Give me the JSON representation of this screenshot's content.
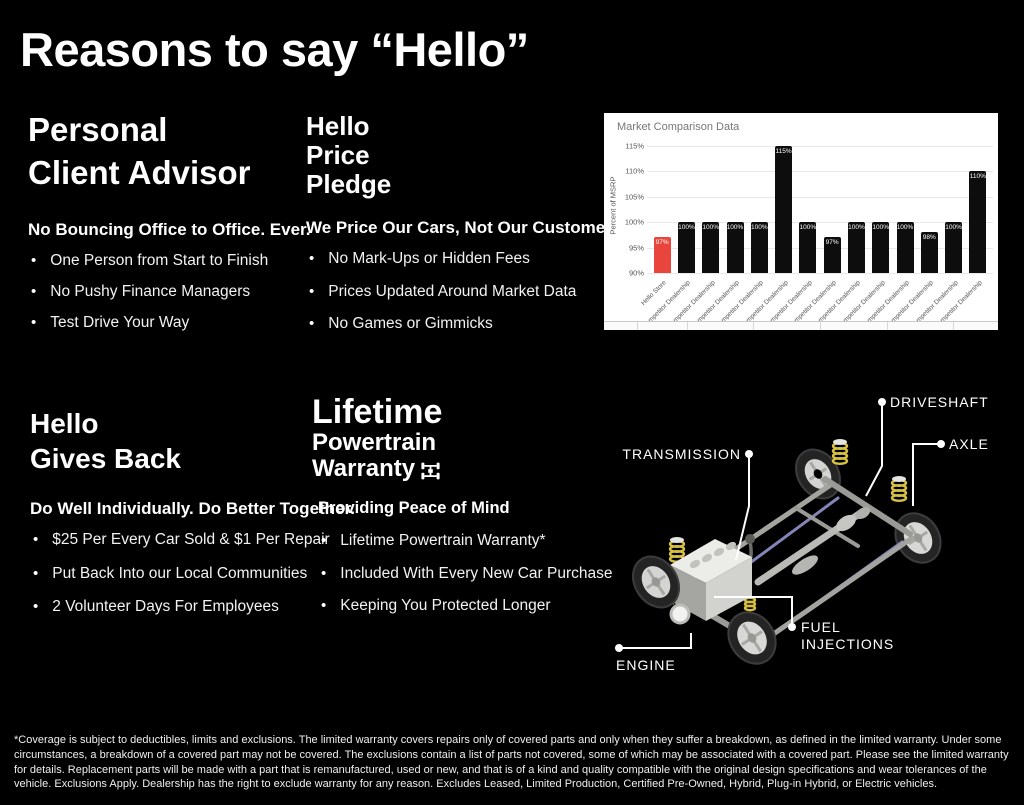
{
  "page": {
    "title": "Reasons to say “Hello”"
  },
  "sections": {
    "personal": {
      "heading_lines": [
        "Personal",
        "Client Advisor"
      ],
      "subheading": "No Bouncing Office to Office. Ever.",
      "bullets": [
        "One Person from Start to Finish",
        "No Pushy Finance Managers",
        "Test Drive Your Way"
      ]
    },
    "price_pledge": {
      "heading_lines": [
        "Hello",
        "Price",
        "Pledge"
      ],
      "subheading": "We Price Our Cars, Not Our Customers.",
      "bullets": [
        "No Mark-Ups or Hidden Fees",
        "Prices Updated Around Market Data",
        "No Games or Gimmicks"
      ]
    },
    "gives_back": {
      "heading_lines": [
        "Hello",
        "Gives Back"
      ],
      "subheading": "Do Well Individually. Do Better Together.",
      "bullets": [
        "$25 Per Every Car Sold & $1 Per Repair",
        "Put Back Into our Local Communities",
        "2 Volunteer Days For Employees"
      ]
    },
    "warranty": {
      "heading_line1": "Lifetime",
      "heading_line2": "Powertrain",
      "heading_line3": "Warranty",
      "subheading": "Providing Peace of Mind",
      "bullets": [
        "Lifetime Powertrain Warranty*",
        "Included With Every New Car Purchase",
        "Keeping You Protected Longer"
      ]
    }
  },
  "chart_data": {
    "type": "bar",
    "title": "Market Comparison Data",
    "ylabel": "Percent of MSRP",
    "xlabel": "",
    "categories": [
      "Hello Store",
      "Competitor Dealership",
      "Competitor Dealership",
      "Competitor Dealership",
      "Competitor Dealership",
      "Competitor Dealership",
      "Competitor Dealership",
      "Competitor Dealership",
      "Competitor Dealership",
      "Competitor Dealership",
      "Competitor Dealership",
      "Competitor Dealership",
      "Competitor Dealership",
      "Competitor Dealership"
    ],
    "values": [
      97,
      100,
      100,
      100,
      100,
      115,
      100,
      97,
      100,
      100,
      100,
      98,
      100,
      110
    ],
    "value_labels": [
      "97%",
      "100%",
      "100%",
      "100%",
      "100%",
      "115%",
      "100%",
      "97%",
      "100%",
      "100%",
      "100%",
      "98%",
      "100%",
      "110%"
    ],
    "yticks": [
      "90%",
      "95%",
      "100%",
      "105%",
      "110%",
      "115%"
    ],
    "ylim": [
      90,
      116
    ],
    "grid": true,
    "legend_position": "none",
    "highlight_color": "#e8463c",
    "bar_color": "#0d0d0d"
  },
  "diagram": {
    "callouts": {
      "driveshaft": "DRIVESHAFT",
      "axle": "AXLE",
      "transmission": "TRANSMISSION",
      "fuel_line1": "FUEL",
      "fuel_line2": "INJECTIONS",
      "engine": "ENGINE"
    }
  },
  "footer": {
    "disclaimer": "*Coverage is subject to deductibles, limits and exclusions. The limited warranty covers repairs only of covered parts and only when they suffer a breakdown, as defined in the limited warranty. Under some circumstances, a breakdown of a covered part may not be covered. The exclusions contain a list of parts not covered, some of which may be associated with a covered part. Please see the limited warranty for details. Replacement parts will be made with a part that is remanufactured, used or new, and that is of a kind and quality compatible with the original design specifications and wear tolerances of the vehicle. Exclusions Apply. Dealership has the right to exclude warranty for any reason. Excludes Leased, Limited Production, Certified Pre-Owned, Hybrid, Plug-in Hybrid, or Electric vehicles."
  }
}
